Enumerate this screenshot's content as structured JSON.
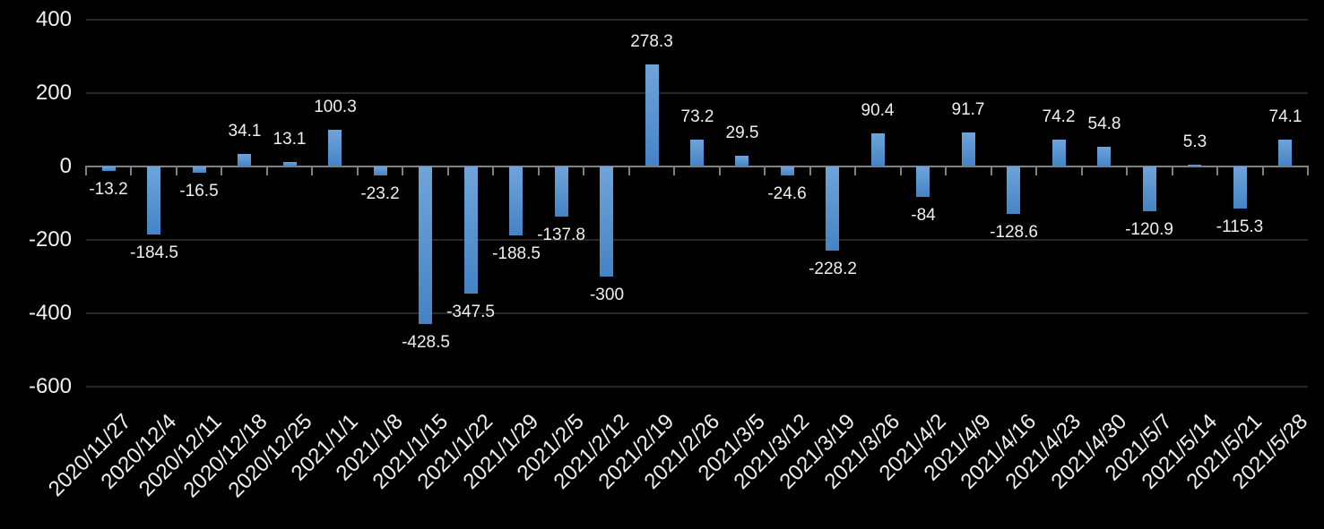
{
  "chart_data": {
    "type": "bar",
    "title": "",
    "xlabel": "",
    "ylabel": "",
    "categories": [
      "2020/11/27",
      "2020/12/4",
      "2020/12/11",
      "2020/12/18",
      "2020/12/25",
      "2021/1/1",
      "2021/1/8",
      "2021/1/15",
      "2021/1/22",
      "2021/1/29",
      "2021/2/5",
      "2021/2/12",
      "2021/2/19",
      "2021/2/26",
      "2021/3/5",
      "2021/3/12",
      "2021/3/19",
      "2021/3/26",
      "2021/4/2",
      "2021/4/9",
      "2021/4/16",
      "2021/4/23",
      "2021/4/30",
      "2021/5/7",
      "2021/5/14",
      "2021/5/21",
      "2021/5/28"
    ],
    "values": [
      -13.2,
      -184.5,
      -16.5,
      34.1,
      13.1,
      100.3,
      -23.2,
      -428.5,
      -347.5,
      -188.5,
      -137.8,
      -300,
      278.3,
      73.2,
      29.5,
      -24.6,
      -228.2,
      90.4,
      -84,
      91.7,
      -128.6,
      74.2,
      54.8,
      -120.9,
      5.3,
      -115.3,
      74.1
    ],
    "data_labels": true,
    "y_ticks": [
      400,
      200,
      0,
      -200,
      -400,
      -600
    ],
    "ylim": [
      -600,
      400
    ],
    "grid": true,
    "legend": false,
    "colors": {
      "background": "#000000",
      "bar_gradient_top": "#6fa4da",
      "bar_gradient_bottom": "#4583c5",
      "gridline": "#272727",
      "axis": "#808080",
      "text": "#f0f0f0"
    }
  }
}
